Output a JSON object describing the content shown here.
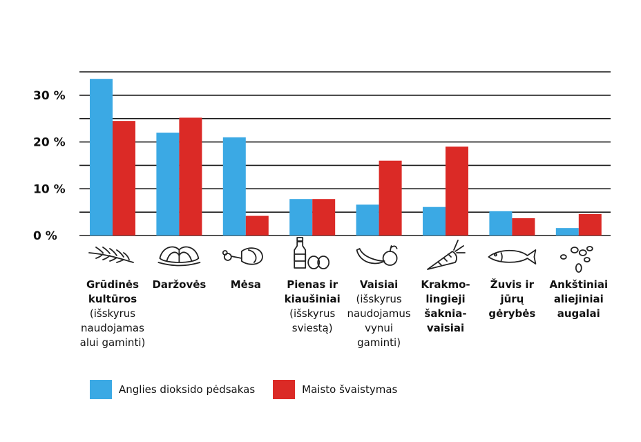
{
  "colors": {
    "series1": "#3ba9e4",
    "series2": "#db2a26",
    "grid": "#1a1a1a"
  },
  "chart_data": {
    "type": "bar",
    "title": "",
    "xlabel": "",
    "ylabel": "",
    "ylim": [
      0,
      35
    ],
    "grid": "horizontal lines every 5 %",
    "legend": "bottom-left",
    "yticks": [
      "0 %",
      "10 %",
      "20 %",
      "30 %"
    ],
    "categories": [
      {
        "main": "Grūdinės\nkultūros",
        "note": "(išskyrus\nnaudojamas\nalui gaminti)",
        "icon": "wheat-icon"
      },
      {
        "main": "Daržovės",
        "note": "",
        "icon": "lettuce-icon"
      },
      {
        "main": "Mėsa",
        "note": "",
        "icon": "ham-icon"
      },
      {
        "main": "Pienas ir\nkiaušiniai",
        "note": "(išskyrus\nsviestą)",
        "icon": "milk-eggs-icon"
      },
      {
        "main": "Vaisiai",
        "note": "(išskyrus\nnaudojamus\nvynui\ngaminti)",
        "icon": "fruit-icon"
      },
      {
        "main": "Krakmo-\nlingieji\nšaknia-\nvaisiai",
        "note": "",
        "icon": "carrot-icon"
      },
      {
        "main": "Žuvis ir\njūrų\ngėrybės",
        "note": "",
        "icon": "fish-icon"
      },
      {
        "main": "Ankštiniai\naliejiniai\naugalai",
        "note": "",
        "icon": "seeds-icon"
      }
    ],
    "series": [
      {
        "name": "Anglies dioksido pėdsakas",
        "color": "#3ba9e4",
        "values": [
          33.5,
          22,
          21,
          7.8,
          6.6,
          6.1,
          5.2,
          1.6
        ]
      },
      {
        "name": "Maisto švaistymas",
        "color": "#db2a26",
        "values": [
          24.5,
          25.2,
          4.2,
          7.8,
          16,
          19,
          3.7,
          4.6
        ]
      }
    ]
  }
}
